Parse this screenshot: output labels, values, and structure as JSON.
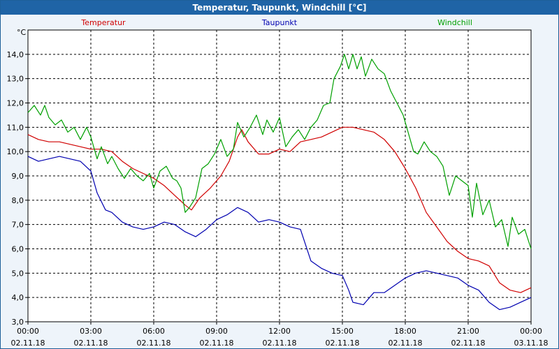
{
  "chart_data": {
    "type": "line",
    "title": "Temperatur, Taupunkt, Windchill [°C]",
    "ylabel": "°C",
    "xlabel": "",
    "ylim": [
      3.0,
      14.0
    ],
    "xlim": [
      0,
      24
    ],
    "grid": true,
    "y_ticks": [
      "3,0",
      "4,0",
      "5,0",
      "6,0",
      "7,0",
      "8,0",
      "9,0",
      "10,0",
      "11,0",
      "12,0",
      "13,0",
      "14,0"
    ],
    "x_ticks": [
      {
        "time": "00:00",
        "date": "02.11.18"
      },
      {
        "time": "03:00",
        "date": "02.11.18"
      },
      {
        "time": "06:00",
        "date": "02.11.18"
      },
      {
        "time": "09:00",
        "date": "02.11.18"
      },
      {
        "time": "12:00",
        "date": "02.11.18"
      },
      {
        "time": "15:00",
        "date": "02.11.18"
      },
      {
        "time": "18:00",
        "date": "02.11.18"
      },
      {
        "time": "21:00",
        "date": "02.11.18"
      },
      {
        "time": "00:00",
        "date": "03.11.18"
      }
    ],
    "series": [
      {
        "name": "Temperatur",
        "color": "#d00000",
        "points": [
          [
            0,
            10.7
          ],
          [
            0.5,
            10.5
          ],
          [
            1,
            10.4
          ],
          [
            1.5,
            10.4
          ],
          [
            2,
            10.3
          ],
          [
            2.5,
            10.2
          ],
          [
            3,
            10.1
          ],
          [
            3.5,
            10.1
          ],
          [
            4,
            10.0
          ],
          [
            4.5,
            9.6
          ],
          [
            5,
            9.3
          ],
          [
            5.5,
            9.1
          ],
          [
            6,
            8.9
          ],
          [
            6.5,
            8.6
          ],
          [
            7,
            8.2
          ],
          [
            7.5,
            7.8
          ],
          [
            7.8,
            7.6
          ],
          [
            8.2,
            8.1
          ],
          [
            8.7,
            8.5
          ],
          [
            9.2,
            9.0
          ],
          [
            9.6,
            9.6
          ],
          [
            10,
            10.6
          ],
          [
            10.2,
            10.9
          ],
          [
            10.5,
            10.4
          ],
          [
            11,
            9.9
          ],
          [
            11.5,
            9.9
          ],
          [
            12,
            10.1
          ],
          [
            12.5,
            10.0
          ],
          [
            13,
            10.4
          ],
          [
            13.5,
            10.5
          ],
          [
            14,
            10.6
          ],
          [
            14.5,
            10.8
          ],
          [
            15,
            11.0
          ],
          [
            15.5,
            11.0
          ],
          [
            16,
            10.9
          ],
          [
            16.5,
            10.8
          ],
          [
            17,
            10.5
          ],
          [
            17.5,
            10.0
          ],
          [
            18,
            9.3
          ],
          [
            18.5,
            8.5
          ],
          [
            19,
            7.5
          ],
          [
            19.5,
            6.9
          ],
          [
            20,
            6.3
          ],
          [
            20.5,
            5.9
          ],
          [
            21,
            5.6
          ],
          [
            21.5,
            5.5
          ],
          [
            22,
            5.3
          ],
          [
            22.5,
            4.6
          ],
          [
            23,
            4.3
          ],
          [
            23.5,
            4.2
          ],
          [
            24,
            4.4
          ]
        ]
      },
      {
        "name": "Taupunkt",
        "color": "#0000b0",
        "points": [
          [
            0,
            9.8
          ],
          [
            0.5,
            9.6
          ],
          [
            1,
            9.7
          ],
          [
            1.5,
            9.8
          ],
          [
            2,
            9.7
          ],
          [
            2.5,
            9.6
          ],
          [
            3,
            9.2
          ],
          [
            3.3,
            8.3
          ],
          [
            3.7,
            7.6
          ],
          [
            4,
            7.5
          ],
          [
            4.5,
            7.1
          ],
          [
            5,
            6.9
          ],
          [
            5.5,
            6.8
          ],
          [
            6,
            6.9
          ],
          [
            6.5,
            7.1
          ],
          [
            7,
            7.0
          ],
          [
            7.5,
            6.7
          ],
          [
            8,
            6.5
          ],
          [
            8.5,
            6.8
          ],
          [
            9,
            7.2
          ],
          [
            9.5,
            7.4
          ],
          [
            10,
            7.7
          ],
          [
            10.5,
            7.5
          ],
          [
            11,
            7.1
          ],
          [
            11.5,
            7.2
          ],
          [
            12,
            7.1
          ],
          [
            12.5,
            6.9
          ],
          [
            13,
            6.8
          ],
          [
            13.5,
            5.5
          ],
          [
            14,
            5.2
          ],
          [
            14.5,
            5.0
          ],
          [
            15,
            4.9
          ],
          [
            15.3,
            4.3
          ],
          [
            15.5,
            3.8
          ],
          [
            16,
            3.7
          ],
          [
            16.5,
            4.2
          ],
          [
            17,
            4.2
          ],
          [
            17.5,
            4.5
          ],
          [
            18,
            4.8
          ],
          [
            18.5,
            5.0
          ],
          [
            19,
            5.1
          ],
          [
            19.5,
            5.0
          ],
          [
            20,
            4.9
          ],
          [
            20.5,
            4.8
          ],
          [
            21,
            4.5
          ],
          [
            21.5,
            4.3
          ],
          [
            22,
            3.8
          ],
          [
            22.5,
            3.5
          ],
          [
            23,
            3.6
          ],
          [
            23.5,
            3.8
          ],
          [
            24,
            4.0
          ]
        ]
      },
      {
        "name": "Windchill",
        "color": "#00a000",
        "points": [
          [
            0,
            11.6
          ],
          [
            0.3,
            11.9
          ],
          [
            0.6,
            11.5
          ],
          [
            0.8,
            11.9
          ],
          [
            1,
            11.4
          ],
          [
            1.3,
            11.1
          ],
          [
            1.6,
            11.3
          ],
          [
            1.9,
            10.8
          ],
          [
            2.2,
            11.0
          ],
          [
            2.5,
            10.5
          ],
          [
            2.8,
            11.0
          ],
          [
            3,
            10.6
          ],
          [
            3.3,
            9.7
          ],
          [
            3.5,
            10.2
          ],
          [
            3.8,
            9.5
          ],
          [
            4,
            9.8
          ],
          [
            4.3,
            9.3
          ],
          [
            4.6,
            8.9
          ],
          [
            4.9,
            9.3
          ],
          [
            5.2,
            9.0
          ],
          [
            5.5,
            8.8
          ],
          [
            5.8,
            9.1
          ],
          [
            6,
            8.5
          ],
          [
            6.3,
            9.2
          ],
          [
            6.6,
            9.4
          ],
          [
            6.9,
            8.9
          ],
          [
            7.1,
            8.8
          ],
          [
            7.3,
            8.5
          ],
          [
            7.5,
            7.5
          ],
          [
            7.7,
            7.7
          ],
          [
            8,
            8.1
          ],
          [
            8.3,
            9.3
          ],
          [
            8.6,
            9.5
          ],
          [
            8.9,
            9.9
          ],
          [
            9.2,
            10.5
          ],
          [
            9.5,
            9.8
          ],
          [
            9.8,
            10.1
          ],
          [
            10,
            11.2
          ],
          [
            10.3,
            10.6
          ],
          [
            10.6,
            11.0
          ],
          [
            10.9,
            11.5
          ],
          [
            11.2,
            10.7
          ],
          [
            11.4,
            11.3
          ],
          [
            11.7,
            10.8
          ],
          [
            12,
            11.4
          ],
          [
            12.3,
            10.2
          ],
          [
            12.6,
            10.6
          ],
          [
            12.9,
            10.9
          ],
          [
            13.2,
            10.5
          ],
          [
            13.5,
            11.0
          ],
          [
            13.8,
            11.3
          ],
          [
            14.1,
            11.9
          ],
          [
            14.4,
            12.0
          ],
          [
            14.6,
            13.0
          ],
          [
            14.9,
            13.5
          ],
          [
            15.1,
            14.0
          ],
          [
            15.3,
            13.4
          ],
          [
            15.5,
            14.0
          ],
          [
            15.7,
            13.4
          ],
          [
            15.9,
            13.9
          ],
          [
            16.1,
            13.1
          ],
          [
            16.4,
            13.8
          ],
          [
            16.7,
            13.4
          ],
          [
            17,
            13.2
          ],
          [
            17.3,
            12.5
          ],
          [
            17.6,
            12.0
          ],
          [
            17.9,
            11.5
          ],
          [
            18.1,
            10.9
          ],
          [
            18.4,
            10.0
          ],
          [
            18.6,
            9.9
          ],
          [
            18.9,
            10.4
          ],
          [
            19.2,
            10.0
          ],
          [
            19.5,
            9.8
          ],
          [
            19.8,
            9.4
          ],
          [
            20.1,
            8.2
          ],
          [
            20.4,
            9.0
          ],
          [
            20.7,
            8.8
          ],
          [
            21,
            8.6
          ],
          [
            21.2,
            7.3
          ],
          [
            21.4,
            8.7
          ],
          [
            21.7,
            7.4
          ],
          [
            22,
            8.0
          ],
          [
            22.3,
            6.9
          ],
          [
            22.6,
            7.2
          ],
          [
            22.9,
            6.1
          ],
          [
            23.1,
            7.3
          ],
          [
            23.4,
            6.6
          ],
          [
            23.7,
            6.8
          ],
          [
            24,
            6.0
          ]
        ]
      }
    ]
  }
}
